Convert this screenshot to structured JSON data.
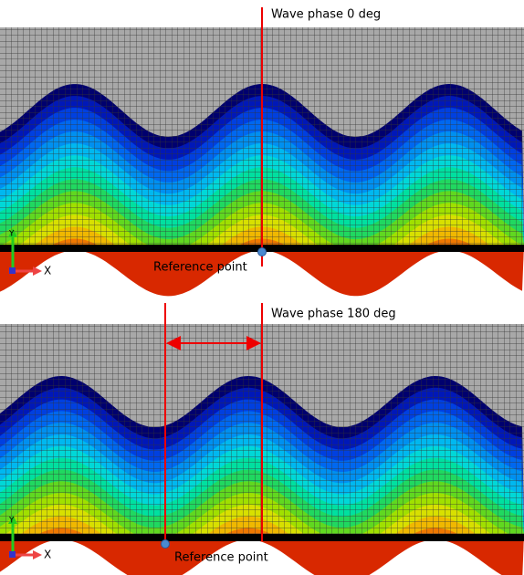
{
  "panels": [
    {
      "label": "Wave phase 0 deg",
      "reference": "Reference point",
      "x_axis": "X",
      "y_axis": "Y"
    },
    {
      "label": "Wave phase 180 deg",
      "reference": "Reference point",
      "x_axis": "X",
      "y_axis": "Y"
    }
  ]
}
